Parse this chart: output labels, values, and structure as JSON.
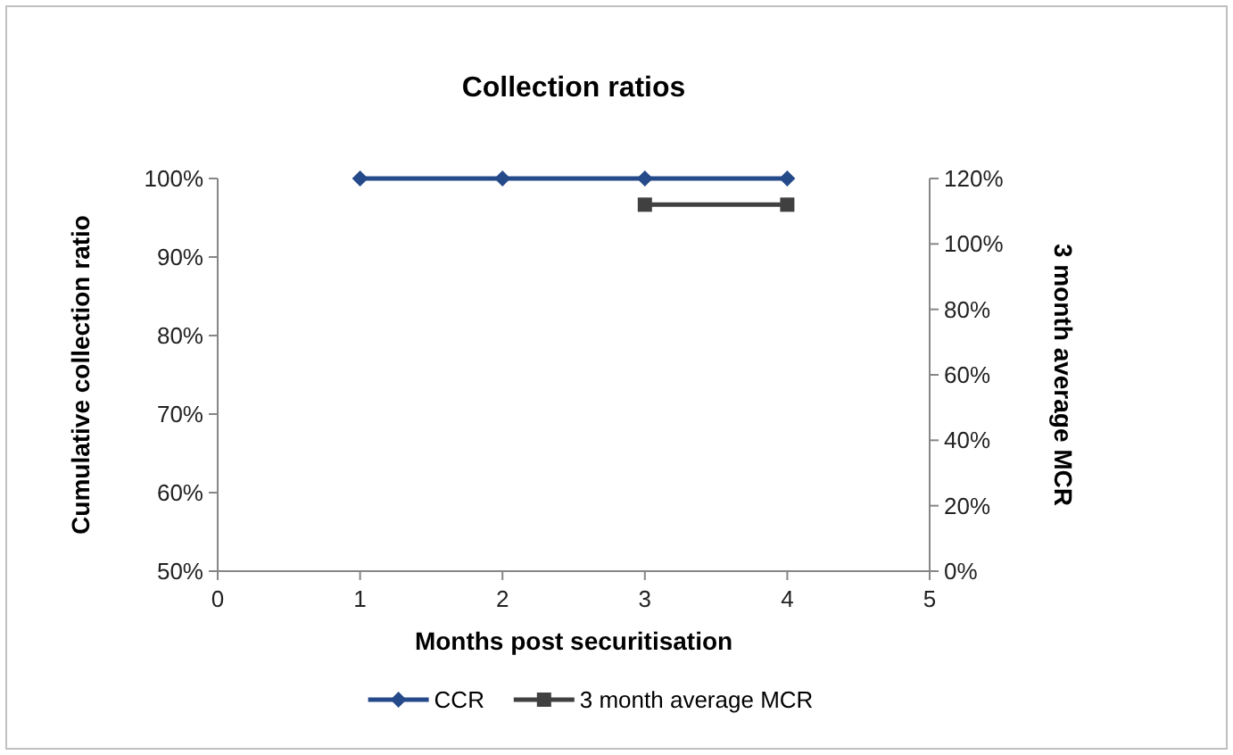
{
  "chart_data": {
    "type": "line",
    "title": "Collection ratios",
    "xlabel": "Months post securitisation",
    "ylabel": "Cumulative collection ratio",
    "y2label": "3 month average MCR",
    "xlim": [
      0,
      5
    ],
    "xticks": [
      0,
      1,
      2,
      3,
      4,
      5
    ],
    "ylim": [
      50,
      100
    ],
    "yticks": [
      {
        "value": 50,
        "label": "50%"
      },
      {
        "value": 60,
        "label": "60%"
      },
      {
        "value": 70,
        "label": "70%"
      },
      {
        "value": 80,
        "label": "80%"
      },
      {
        "value": 90,
        "label": "90%"
      },
      {
        "value": 100,
        "label": "100%"
      }
    ],
    "y2lim": [
      0,
      120
    ],
    "y2ticks": [
      {
        "value": 0,
        "label": "0%"
      },
      {
        "value": 20,
        "label": "20%"
      },
      {
        "value": 40,
        "label": "40%"
      },
      {
        "value": 60,
        "label": "60%"
      },
      {
        "value": 80,
        "label": "80%"
      },
      {
        "value": 100,
        "label": "100%"
      },
      {
        "value": 120,
        "label": "120%"
      }
    ],
    "series": [
      {
        "name": "CCR",
        "color": "#254a8a",
        "x": [
          1,
          2,
          3,
          4
        ],
        "values": [
          100,
          100,
          100,
          100
        ],
        "marker": "diamond"
      },
      {
        "name": "3 month average MCR",
        "color": "#404040",
        "x": [
          3,
          4
        ],
        "values": [
          112,
          112
        ],
        "axis": "y2",
        "marker": "square"
      }
    ],
    "grid": false,
    "legend": "bottom",
    "line_style": "solid"
  }
}
